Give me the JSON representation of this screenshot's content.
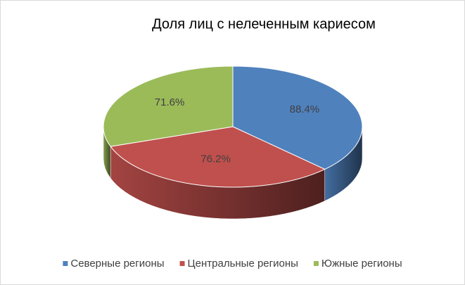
{
  "chart_data": {
    "type": "pie",
    "title": "Доля лиц с нелеченным кариесом",
    "categories": [
      "Северные регионы",
      "Центральные регионы",
      "Южные регионы"
    ],
    "values": [
      88.4,
      76.2,
      71.6
    ],
    "value_labels": [
      "88.4%",
      "76.2%",
      "71.6%"
    ],
    "colors": [
      "#4f81bd",
      "#c0504d",
      "#9bbb59"
    ],
    "legend": "bottom"
  }
}
